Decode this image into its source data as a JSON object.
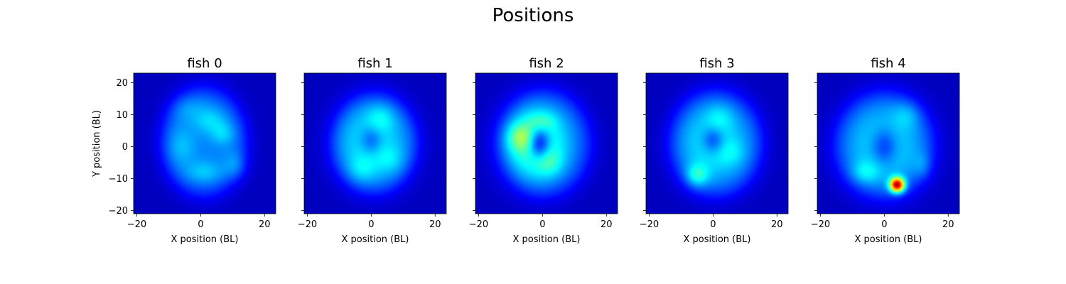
{
  "chart_data": {
    "type": "heatmap",
    "title": "Positions",
    "xlabel": "X position (BL)",
    "ylabel": "Y position (BL)",
    "xlim": [
      -21,
      23.5
    ],
    "ylim": [
      -21,
      23
    ],
    "xticks": [
      -20,
      0,
      20
    ],
    "yticks": [
      -20,
      -10,
      0,
      10,
      20
    ],
    "colormap": "jet",
    "grid": false,
    "legend": "none",
    "shared_y": true,
    "panels": [
      {
        "title": "fish 0",
        "background": 0.06,
        "disk": {
          "cx": 1.0,
          "cy": 1.5,
          "rx": 13.0,
          "ry": 16.5,
          "level": 0.19
        },
        "blobs": [
          {
            "x": 3.0,
            "y": 8.0,
            "sx": 3.5,
            "sy": 3.0,
            "amp": 0.09
          },
          {
            "x": 7.0,
            "y": 4.0,
            "sx": 2.5,
            "sy": 2.5,
            "amp": 0.08
          },
          {
            "x": -6.0,
            "y": 0.0,
            "sx": 3.0,
            "sy": 4.0,
            "amp": 0.07
          },
          {
            "x": 1.0,
            "y": -8.0,
            "sx": 4.0,
            "sy": 2.5,
            "amp": 0.08
          },
          {
            "x": 11.0,
            "y": -6.0,
            "sx": 2.5,
            "sy": 3.0,
            "amp": 0.07
          },
          {
            "x": -4.0,
            "y": 12.0,
            "sx": 4.0,
            "sy": 3.0,
            "amp": 0.05
          }
        ]
      },
      {
        "title": "fish 1",
        "background": 0.06,
        "disk": {
          "cx": 1.0,
          "cy": 1.0,
          "rx": 13.0,
          "ry": 15.0,
          "level": 0.17
        },
        "blobs": [
          {
            "x": 0.0,
            "y": 1.0,
            "sx": 7.5,
            "sy": 8.5,
            "amp": 0.14
          },
          {
            "x": 0.0,
            "y": 2.0,
            "sx": 2.5,
            "sy": 3.0,
            "amp": -0.13
          },
          {
            "x": 3.0,
            "y": 9.0,
            "sx": 3.0,
            "sy": 3.0,
            "amp": 0.08
          },
          {
            "x": -3.0,
            "y": -7.0,
            "sx": 3.0,
            "sy": 3.0,
            "amp": 0.07
          },
          {
            "x": 6.0,
            "y": -4.0,
            "sx": 3.0,
            "sy": 3.0,
            "amp": 0.06
          }
        ]
      },
      {
        "title": "fish 2",
        "background": 0.06,
        "disk": {
          "cx": 1.0,
          "cy": 1.0,
          "rx": 14.0,
          "ry": 16.0,
          "level": 0.14
        },
        "blobs": [
          {
            "x": -2.0,
            "y": 1.0,
            "sx": 7.0,
            "sy": 8.0,
            "amp": 0.3
          },
          {
            "x": -1.0,
            "y": 1.0,
            "sx": 2.5,
            "sy": 3.5,
            "amp": -0.33
          },
          {
            "x": -7.0,
            "y": 3.0,
            "sx": 3.0,
            "sy": 3.0,
            "amp": 0.14
          },
          {
            "x": 0.0,
            "y": 8.0,
            "sx": 3.0,
            "sy": 2.0,
            "amp": 0.08
          },
          {
            "x": 2.0,
            "y": -5.0,
            "sx": 3.0,
            "sy": 3.0,
            "amp": 0.09
          }
        ]
      },
      {
        "title": "fish 3",
        "background": 0.06,
        "disk": {
          "cx": 1.0,
          "cy": 1.0,
          "rx": 14.0,
          "ry": 16.0,
          "level": 0.17
        },
        "blobs": [
          {
            "x": 0.0,
            "y": 1.0,
            "sx": 7.0,
            "sy": 8.0,
            "amp": 0.15
          },
          {
            "x": 0.0,
            "y": 2.0,
            "sx": 2.5,
            "sy": 3.0,
            "amp": -0.16
          },
          {
            "x": -5.0,
            "y": -9.0,
            "sx": 2.5,
            "sy": 2.5,
            "amp": 0.16
          },
          {
            "x": 2.0,
            "y": 9.0,
            "sx": 3.0,
            "sy": 3.0,
            "amp": 0.07
          },
          {
            "x": 6.0,
            "y": -2.0,
            "sx": 3.0,
            "sy": 3.0,
            "amp": 0.06
          }
        ]
      },
      {
        "title": "fish 4",
        "background": 0.06,
        "disk": {
          "cx": 0.0,
          "cy": 0.5,
          "rx": 15.0,
          "ry": 16.0,
          "level": 0.16
        },
        "blobs": [
          {
            "x": 0.0,
            "y": 0.0,
            "sx": 8.0,
            "sy": 9.0,
            "amp": 0.15
          },
          {
            "x": 0.0,
            "y": 0.0,
            "sx": 3.0,
            "sy": 4.0,
            "amp": -0.17
          },
          {
            "x": 4.0,
            "y": -12.0,
            "sx": 1.6,
            "sy": 1.6,
            "amp": 0.72
          },
          {
            "x": -6.0,
            "y": -8.0,
            "sx": 3.0,
            "sy": 2.5,
            "amp": 0.1
          },
          {
            "x": 7.0,
            "y": 10.0,
            "sx": 3.0,
            "sy": 3.0,
            "amp": 0.07
          },
          {
            "x": 12.0,
            "y": -6.0,
            "sx": 2.0,
            "sy": 3.0,
            "amp": 0.06
          }
        ]
      }
    ]
  }
}
